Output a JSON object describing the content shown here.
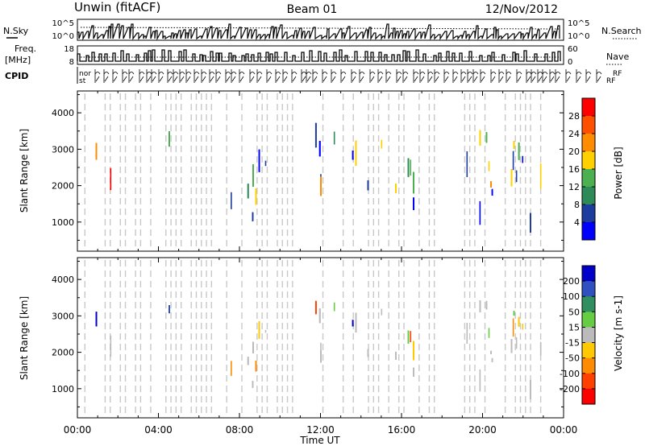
{
  "header": {
    "station": "Unwin (fitACF)",
    "beam": "Beam 01",
    "date": "12/Nov/2012"
  },
  "side_labels": {
    "nsky": "N.Sky",
    "nsearch": "N.Search",
    "freq_line1": "Freq.",
    "freq_line2": "[MHz]",
    "nave": "Nave",
    "cpid": "CPID"
  },
  "top_panel_ticks": {
    "noise_left": [
      "10^5",
      "10^0"
    ],
    "noise_right": [
      "10^5",
      "10^0"
    ],
    "freq_left": [
      "18",
      "8"
    ],
    "nave_right": [
      "60",
      "0"
    ]
  },
  "cpid_fragments": [
    "nor",
    "st",
    "RF",
    "RF"
  ],
  "chart_data": [
    {
      "type": "heatmap",
      "name": "power",
      "ylabel": "Slant Range [km]",
      "xlabel": "",
      "yticks": [
        1000,
        2000,
        3000,
        4000
      ],
      "ylim": [
        200,
        4600
      ],
      "xlim": [
        0,
        24
      ],
      "colorbar": {
        "label": "Power [dB]",
        "ticks": [
          "28",
          "24",
          "20",
          "16",
          "12",
          "8",
          "4"
        ],
        "colors": [
          "#ff0000",
          "#ff5000",
          "#ff8c00",
          "#ffd000",
          "#4caf50",
          "#2e8b57",
          "#1e3ca0",
          "#0000ff"
        ]
      }
    },
    {
      "type": "heatmap",
      "name": "velocity",
      "ylabel": "Slant Range [km]",
      "xlabel": "Time UT",
      "yticks": [
        1000,
        2000,
        3000,
        4000
      ],
      "ylim": [
        200,
        4600
      ],
      "xlim": [
        0,
        24
      ],
      "xticks": [
        "00:00",
        "04:00",
        "08:00",
        "12:00",
        "16:00",
        "20:00",
        "00:00"
      ],
      "colorbar": {
        "label": "Velocity [m s-1]",
        "ticks": [
          "200",
          "100",
          "50",
          "15",
          "-15",
          "-50",
          "-100",
          "-200"
        ],
        "colors": [
          "#0000c8",
          "#3050c0",
          "#2f8f5f",
          "#66cc44",
          "#bbbbbb",
          "#ffc800",
          "#ff8c00",
          "#ff4000",
          "#ff0000"
        ]
      }
    }
  ]
}
